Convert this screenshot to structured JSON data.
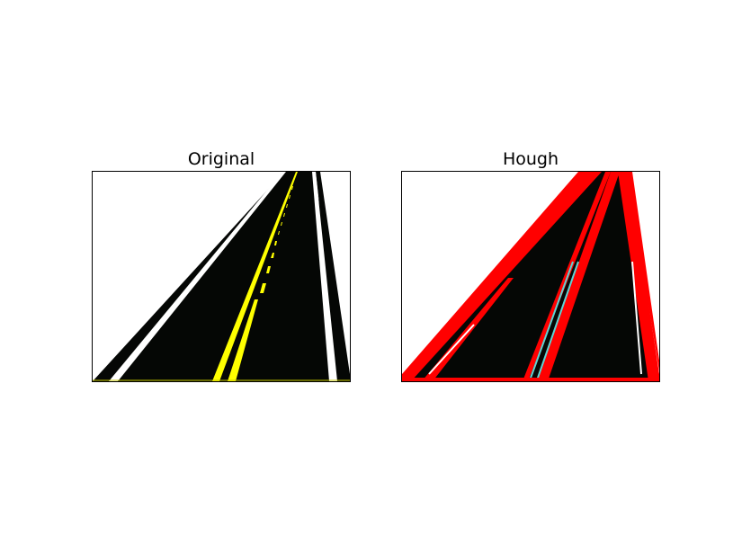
{
  "figure": {
    "panels": [
      {
        "title": "Original"
      },
      {
        "title": "Hough"
      }
    ]
  },
  "colors": {
    "road": "#050705",
    "white_line": "#ffffff",
    "yellow_line": "#ffff00",
    "hough_line": "#ff0000",
    "cyan_line": "#5fd3d3",
    "background": "#ffffff"
  }
}
